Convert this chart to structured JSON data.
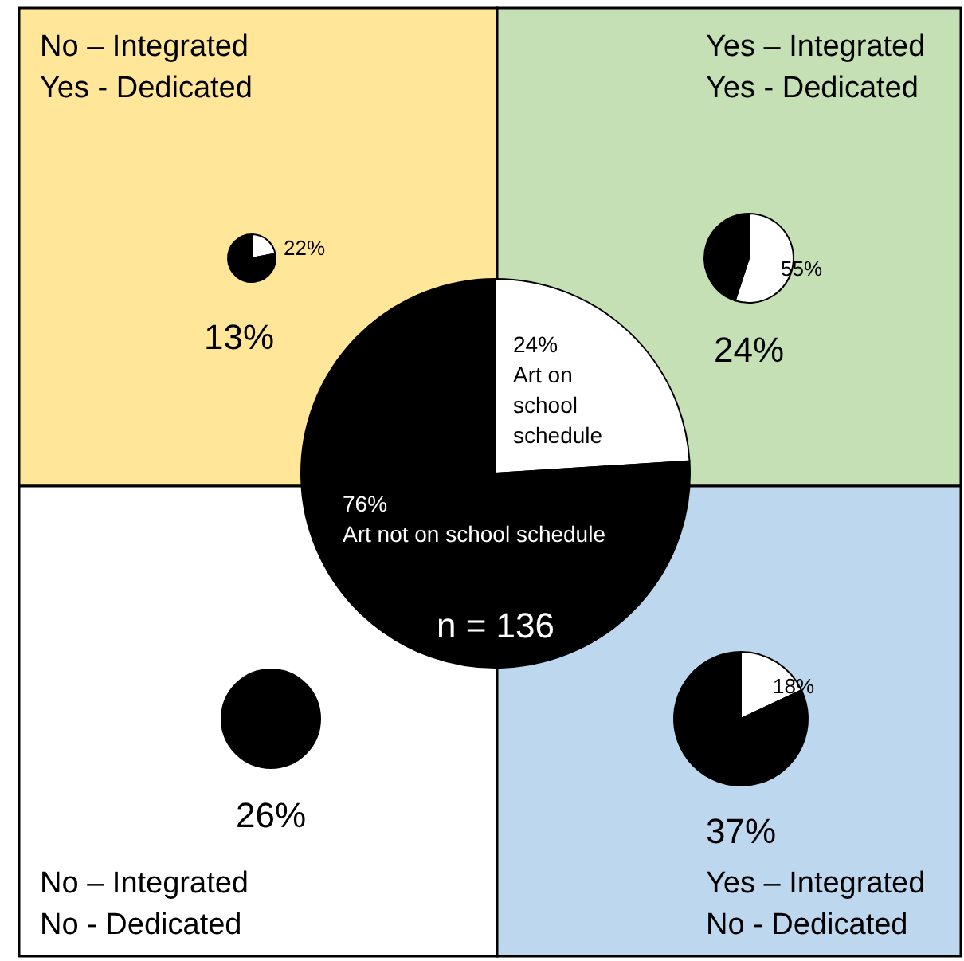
{
  "chart_data": [
    {
      "type": "pie",
      "title": "No – Integrated",
      "subtitle": "Yes - Dedicated",
      "annotations": [
        "13%"
      ],
      "categories": [
        null,
        null
      ],
      "values": [
        22,
        78
      ],
      "colors": [
        "#ffffff",
        "#000000"
      ],
      "value_labels": [
        "22%",
        null
      ]
    },
    {
      "type": "pie",
      "title": "Yes – Integrated",
      "subtitle": "Yes - Dedicated",
      "annotations": [
        "24%"
      ],
      "categories": [
        null,
        null
      ],
      "values": [
        55,
        45
      ],
      "colors": [
        "#ffffff",
        "#000000"
      ],
      "value_labels": [
        "55%",
        null
      ]
    },
    {
      "type": "pie",
      "annotations": [
        "n = 136"
      ],
      "categories": [
        "Art on school schedule",
        "Art not on school schedule"
      ],
      "values": [
        24,
        76
      ],
      "colors": [
        "#ffffff",
        "#000000"
      ],
      "value_labels": [
        "24%",
        "76%"
      ]
    },
    {
      "type": "pie",
      "title": "No – Integrated",
      "subtitle": "No - Dedicated",
      "annotations": [
        "26%"
      ],
      "categories": [
        null
      ],
      "values": [
        100
      ],
      "colors": [
        "#000000"
      ],
      "value_labels": [
        null
      ]
    },
    {
      "type": "pie",
      "title": "Yes – Integrated",
      "subtitle": "No - Dedicated",
      "annotations": [
        "37%"
      ],
      "categories": [
        null,
        null
      ],
      "values": [
        18,
        82
      ],
      "colors": [
        "#ffffff",
        "#000000"
      ],
      "value_labels": [
        "18%",
        null
      ]
    }
  ]
}
